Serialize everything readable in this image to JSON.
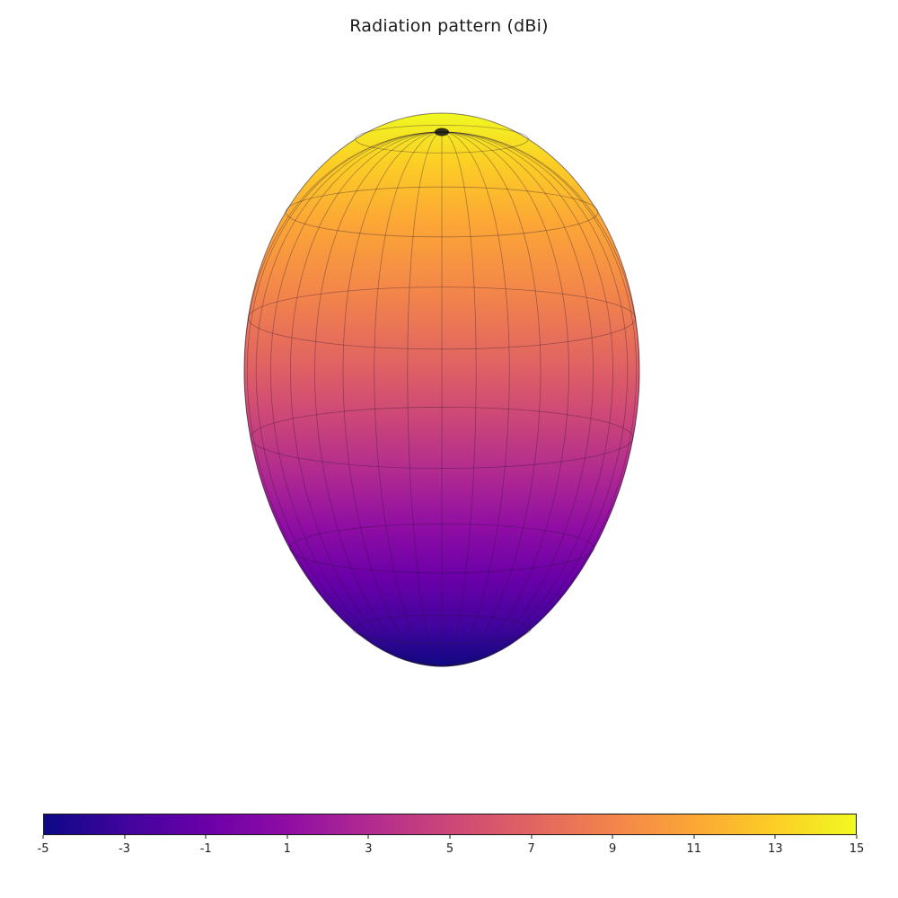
{
  "title": "Radiation pattern (dBi)",
  "chart_data": {
    "type": "surface3d",
    "title": "Radiation pattern (dBi)",
    "colormap": "plasma",
    "value_label": "dBi",
    "value_range": [
      -5,
      15
    ],
    "colorbar": {
      "orientation": "horizontal",
      "min": -5,
      "max": 15,
      "tick_labels": [
        "-5",
        "-3",
        "-1",
        "1",
        "3",
        "5",
        "7",
        "9",
        "11",
        "13",
        "15"
      ],
      "gradient_stops": [
        "#0d0887",
        "#41049d",
        "#6a00a8",
        "#8f0da4",
        "#b12a90",
        "#cc4778",
        "#e16462",
        "#f2844b",
        "#fca636",
        "#fcce25",
        "#f0f921"
      ]
    },
    "surface": {
      "shape": "single directional lobe (egg/teardrop), wireframe mesh over shaded surface, maximum gain at top (zenith), tapering to a point at bottom (nadir)",
      "max_gain_dbi_at_top": 15,
      "min_gain_dbi_at_bottom": -5,
      "estimated_gain_by_polar_angle_deg": {
        "0": 15,
        "30": 13,
        "60": 9,
        "90": 5,
        "120": 1,
        "150": -3,
        "180": -5
      },
      "top_color": "#f0f921",
      "bottom_color": "#0d0887",
      "wireframe": true,
      "meridian_count": 18,
      "latitude_rings": 6
    }
  }
}
